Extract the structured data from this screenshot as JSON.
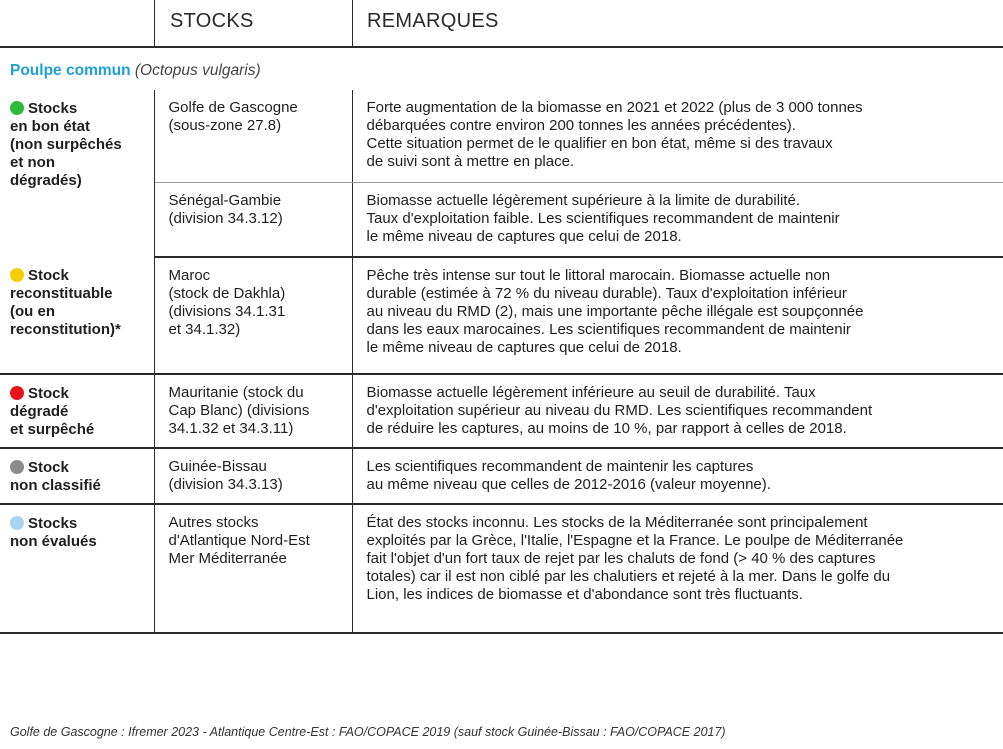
{
  "header": {
    "col_stocks": "STOCKS",
    "col_remarks": "REMARQUES"
  },
  "species": {
    "name": "Poulpe commun",
    "latin": "(Octopus vulgaris)"
  },
  "colors": {
    "accent": "#1ea0d7",
    "good": "#2ebb3a",
    "rebuilding": "#f5d000",
    "degraded": "#e3151b",
    "unclassified": "#8c8c8c",
    "unevaluated": "#a9d4ef"
  },
  "groups": [
    {
      "status_lines": [
        "Stocks",
        "en bon état",
        "(non surpêchés",
        "et non",
        "dégradés)"
      ],
      "dot_color": "#2ebb3a",
      "rows": [
        {
          "stock_lines": [
            "Golfe de Gascogne",
            "(sous-zone 27.8)"
          ],
          "remark_lines": [
            "Forte augmentation de la biomasse en 2021 et 2022 (plus de 3 000 tonnes",
            "débarquées contre environ 200 tonnes les années précédentes).",
            "Cette situation permet de le qualifier en bon état, même si des travaux",
            "de suivi sont à mettre en place."
          ]
        },
        {
          "stock_lines": [
            "Sénégal-Gambie",
            "(division 34.3.12)"
          ],
          "remark_lines": [
            "Biomasse actuelle légèrement supérieure à la limite de durabilité.",
            "Taux d'exploitation faible. Les scientifiques recommandent de maintenir",
            "le même niveau de captures que celui de 2018."
          ]
        }
      ]
    },
    {
      "status_lines": [
        "Stock",
        "reconstituable",
        "(ou en",
        "reconstitution)*"
      ],
      "dot_color": "#f5d000",
      "rows": [
        {
          "stock_lines": [
            "Maroc",
            "(stock de Dakhla)",
            "(divisions 34.1.31",
            "et 34.1.32)"
          ],
          "remark_lines": [
            "Pêche très intense sur tout le littoral marocain. Biomasse actuelle non",
            "durable (estimée à 72 % du niveau durable). Taux d'exploitation inférieur",
            "au niveau du RMD (2), mais une importante pêche illégale est soupçonnée",
            "dans les eaux marocaines. Les scientifiques recommandent de maintenir",
            "le même niveau de captures que celui de 2018."
          ]
        }
      ]
    },
    {
      "status_lines": [
        "Stock",
        "dégradé",
        "et surpêché"
      ],
      "dot_color": "#e3151b",
      "rows": [
        {
          "stock_lines": [
            "Mauritanie (stock du",
            "Cap Blanc) (divisions",
            "34.1.32 et 34.3.11)"
          ],
          "remark_lines": [
            "Biomasse actuelle légèrement inférieure au seuil de durabilité. Taux",
            "d'exploitation supérieur au niveau du RMD. Les scientifiques recommandent",
            "de réduire les captures, au moins de 10 %, par rapport à celles de 2018."
          ]
        }
      ]
    },
    {
      "status_lines": [
        "Stock",
        "non classifié"
      ],
      "dot_color": "#8c8c8c",
      "rows": [
        {
          "stock_lines": [
            "Guinée-Bissau",
            "(division 34.3.13)"
          ],
          "remark_lines": [
            "Les scientifiques recommandent de maintenir les captures",
            "au même niveau que celles de 2012-2016 (valeur moyenne)."
          ]
        }
      ]
    },
    {
      "status_lines": [
        "Stocks",
        "non évalués"
      ],
      "dot_color": "#a9d4ef",
      "rows": [
        {
          "stock_lines": [
            "Autres stocks",
            "d'Atlantique Nord-Est",
            "Mer Méditerranée"
          ],
          "remark_lines": [
            "État des stocks inconnu. Les stocks de la Méditerranée sont principalement",
            "exploités par la Grèce, l'Italie, l'Espagne et la France. Le poulpe de Méditerranée",
            "fait l'objet d'un fort taux de rejet par les chaluts de fond (> 40 % des captures",
            "totales) car il est non ciblé par les chalutiers et rejeté à la mer. Dans le golfe du",
            "Lion, les indices de biomasse et d'abondance sont très fluctuants."
          ]
        }
      ]
    }
  ],
  "footer": "Golfe de Gascogne : Ifremer 2023 - Atlantique Centre-Est : FAO/COPACE 2019 (sauf stock Guinée-Bissau : FAO/COPACE 2017)"
}
